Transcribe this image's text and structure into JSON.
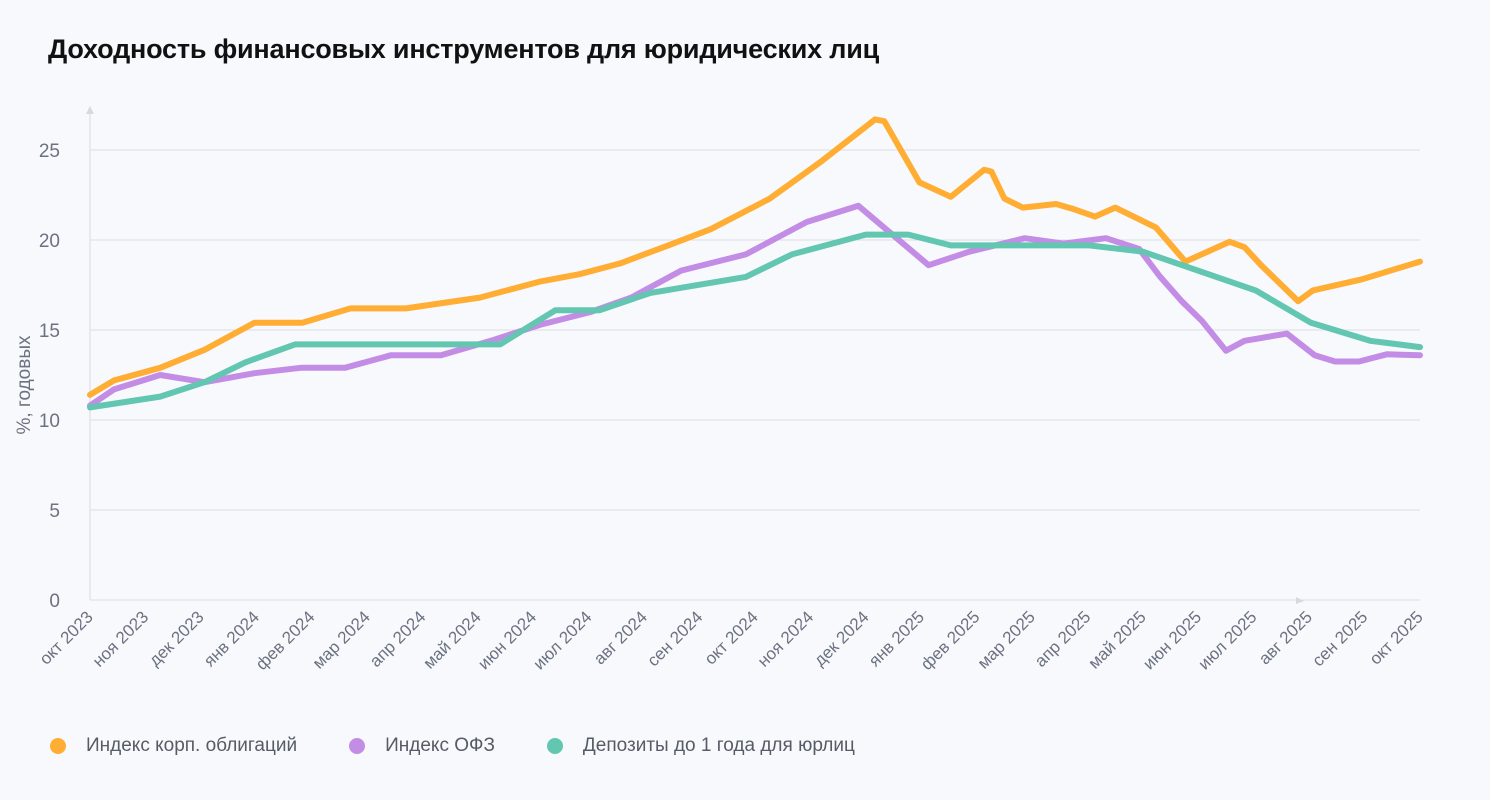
{
  "chart_data": {
    "type": "line",
    "title": "Доходность финансовых инструментов для юридических лиц",
    "xlabel": "",
    "ylabel": "%, годовых",
    "ylim": [
      0,
      27
    ],
    "yticks": [
      0,
      5,
      10,
      15,
      20,
      25
    ],
    "xlim": [
      "2023-10-01",
      "2025-10-01"
    ],
    "xticks": [
      {
        "date": "2023-10-01",
        "label": "окт 2023"
      },
      {
        "date": "2023-11-01",
        "label": "ноя 2023"
      },
      {
        "date": "2023-12-01",
        "label": "дек 2023"
      },
      {
        "date": "2024-01-01",
        "label": "янв 2024"
      },
      {
        "date": "2024-02-01",
        "label": "фев 2024"
      },
      {
        "date": "2024-03-01",
        "label": "мар 2024"
      },
      {
        "date": "2024-04-01",
        "label": "апр 2024"
      },
      {
        "date": "2024-05-01",
        "label": "май 2024"
      },
      {
        "date": "2024-06-01",
        "label": "июн 2024"
      },
      {
        "date": "2024-07-01",
        "label": "июл 2024"
      },
      {
        "date": "2024-08-01",
        "label": "авг 2024"
      },
      {
        "date": "2024-09-01",
        "label": "сен 2024"
      },
      {
        "date": "2024-10-01",
        "label": "окт  2024"
      },
      {
        "date": "2024-11-01",
        "label": "ноя 2024"
      },
      {
        "date": "2024-12-01",
        "label": "дек 2024"
      },
      {
        "date": "2025-01-01",
        "label": "янв 2025"
      },
      {
        "date": "2025-02-01",
        "label": "фев 2025"
      },
      {
        "date": "2025-03-01",
        "label": "мар 2025"
      },
      {
        "date": "2025-04-01",
        "label": "апр 2025"
      },
      {
        "date": "2025-05-01",
        "label": "май 2025"
      },
      {
        "date": "2025-06-01",
        "label": "июн 2025"
      },
      {
        "date": "2025-07-01",
        "label": "июл 2025"
      },
      {
        "date": "2025-08-01",
        "label": "авг 2025"
      },
      {
        "date": "2025-09-01",
        "label": "сен 2025"
      },
      {
        "date": "2025-10-01",
        "label": "окт 2025"
      }
    ],
    "grid": true,
    "legend_position": "bottom-left",
    "series": [
      {
        "name": "Индекс корп. облигаций",
        "color": "#ffad33",
        "points": [
          [
            "2023-10-01",
            11.4
          ],
          [
            "2023-10-14",
            12.2
          ],
          [
            "2023-11-09",
            12.9
          ],
          [
            "2023-12-03",
            13.9
          ],
          [
            "2023-12-30",
            15.4
          ],
          [
            "2024-01-26",
            15.4
          ],
          [
            "2024-02-22",
            16.2
          ],
          [
            "2024-03-22",
            16.2
          ],
          [
            "2024-05-02",
            16.8
          ],
          [
            "2024-06-05",
            17.7
          ],
          [
            "2024-06-26",
            18.1
          ],
          [
            "2024-07-18",
            18.7
          ],
          [
            "2024-08-14",
            19.7
          ],
          [
            "2024-09-07",
            20.6
          ],
          [
            "2024-10-09",
            22.3
          ],
          [
            "2024-11-06",
            24.3
          ],
          [
            "2024-12-06",
            26.7
          ],
          [
            "2024-12-11",
            26.6
          ],
          [
            "2024-12-30",
            23.2
          ],
          [
            "2025-01-17",
            22.4
          ],
          [
            "2025-02-05",
            23.9
          ],
          [
            "2025-02-09",
            23.8
          ],
          [
            "2025-02-16",
            22.3
          ],
          [
            "2025-02-26",
            21.8
          ],
          [
            "2025-03-14",
            22.0
          ],
          [
            "2025-03-24",
            21.7
          ],
          [
            "2025-04-05",
            21.3
          ],
          [
            "2025-04-16",
            21.8
          ],
          [
            "2025-05-08",
            20.7
          ],
          [
            "2025-05-24",
            18.8
          ],
          [
            "2025-06-18",
            19.9
          ],
          [
            "2025-06-26",
            19.6
          ],
          [
            "2025-07-05",
            18.6
          ],
          [
            "2025-07-15",
            17.6
          ],
          [
            "2025-07-25",
            16.6
          ],
          [
            "2025-08-03",
            17.2
          ],
          [
            "2025-08-29",
            17.8
          ],
          [
            "2025-09-15",
            18.3
          ],
          [
            "2025-10-01",
            18.8
          ]
        ]
      },
      {
        "name": "Индекс ОФЗ",
        "color": "#c38de6",
        "points": [
          [
            "2023-10-01",
            10.8
          ],
          [
            "2023-10-14",
            11.7
          ],
          [
            "2023-11-09",
            12.5
          ],
          [
            "2023-12-03",
            12.1
          ],
          [
            "2023-12-30",
            12.6
          ],
          [
            "2024-01-25",
            12.9
          ],
          [
            "2024-02-19",
            12.9
          ],
          [
            "2024-03-14",
            13.6
          ],
          [
            "2024-04-11",
            13.6
          ],
          [
            "2024-05-08",
            14.4
          ],
          [
            "2024-06-05",
            15.3
          ],
          [
            "2024-07-02",
            16.0
          ],
          [
            "2024-07-24",
            16.8
          ],
          [
            "2024-08-21",
            18.3
          ],
          [
            "2024-09-26",
            19.2
          ],
          [
            "2024-10-29",
            21.0
          ],
          [
            "2024-11-27",
            21.9
          ],
          [
            "2025-01-05",
            18.6
          ],
          [
            "2025-01-27",
            19.35
          ],
          [
            "2025-02-27",
            20.1
          ],
          [
            "2025-03-18",
            19.8
          ],
          [
            "2025-04-11",
            20.1
          ],
          [
            "2025-04-29",
            19.5
          ],
          [
            "2025-05-10",
            18.0
          ],
          [
            "2025-05-22",
            16.6
          ],
          [
            "2025-06-03",
            15.5
          ],
          [
            "2025-06-16",
            13.85
          ],
          [
            "2025-06-26",
            14.4
          ],
          [
            "2025-07-19",
            14.8
          ],
          [
            "2025-08-04",
            13.6
          ],
          [
            "2025-08-15",
            13.25
          ],
          [
            "2025-08-28",
            13.25
          ],
          [
            "2025-09-13",
            13.65
          ],
          [
            "2025-10-01",
            13.6
          ]
        ]
      },
      {
        "name": "Депозиты до 1 года для юрлиц",
        "color": "#62c6b1",
        "points": [
          [
            "2023-10-01",
            10.7
          ],
          [
            "2023-11-09",
            11.3
          ],
          [
            "2023-12-03",
            12.1
          ],
          [
            "2023-12-25",
            13.2
          ],
          [
            "2024-01-22",
            14.2
          ],
          [
            "2024-05-13",
            14.2
          ],
          [
            "2024-06-13",
            16.1
          ],
          [
            "2024-07-07",
            16.1
          ],
          [
            "2024-08-04",
            17.05
          ],
          [
            "2024-09-26",
            17.95
          ],
          [
            "2024-10-21",
            19.2
          ],
          [
            "2024-12-01",
            20.3
          ],
          [
            "2024-12-24",
            20.3
          ],
          [
            "2025-01-17",
            19.7
          ],
          [
            "2025-04-02",
            19.7
          ],
          [
            "2025-05-01",
            19.35
          ],
          [
            "2025-07-02",
            17.2
          ],
          [
            "2025-08-02",
            15.4
          ],
          [
            "2025-09-04",
            14.4
          ],
          [
            "2025-10-01",
            14.05
          ]
        ]
      }
    ]
  }
}
